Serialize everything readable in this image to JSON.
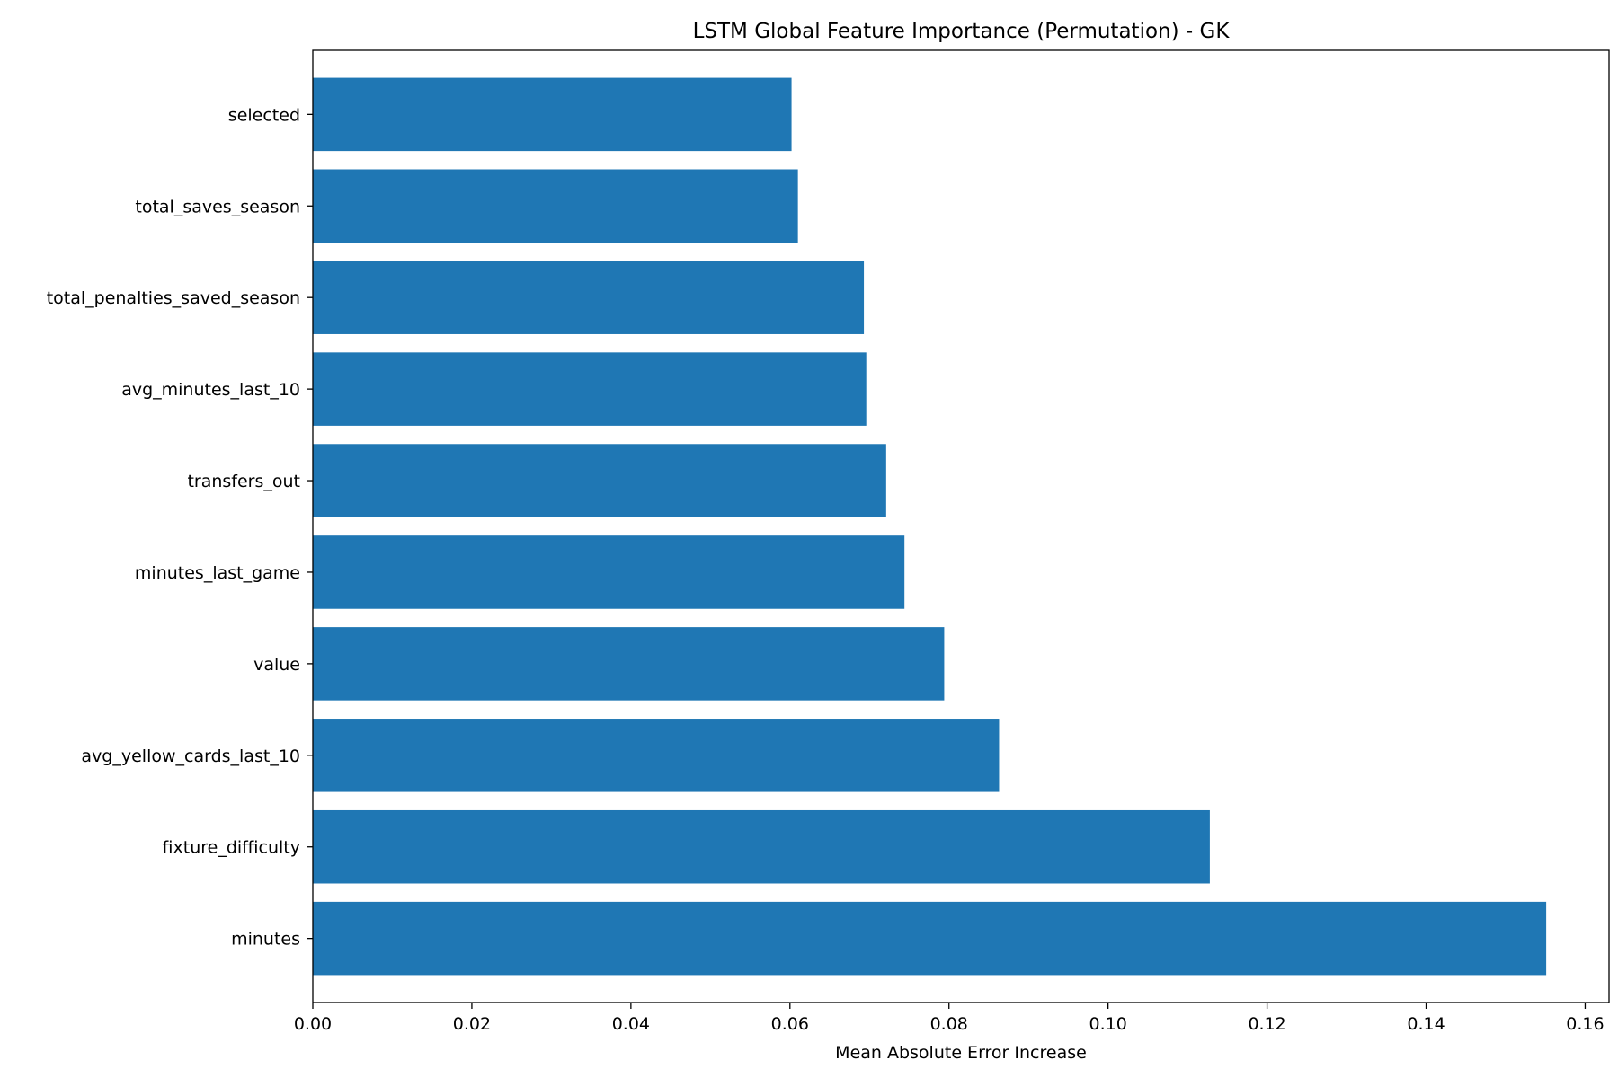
{
  "chart_data": {
    "type": "bar",
    "orientation": "horizontal",
    "title": "LSTM Global Feature Importance (Permutation) - GK",
    "xlabel": "Mean Absolute Error Increase",
    "ylabel": "",
    "categories": [
      "selected",
      "total_saves_season",
      "total_penalties_saved_season",
      "avg_minutes_last_10",
      "transfers_out",
      "minutes_last_game",
      "value",
      "avg_yellow_cards_last_10",
      "fixture_difficulty",
      "minutes"
    ],
    "values": [
      0.0602,
      0.061,
      0.0693,
      0.0696,
      0.0721,
      0.0744,
      0.0794,
      0.0863,
      0.1128,
      0.1551
    ],
    "xlim": [
      0,
      0.163
    ],
    "xticks": [
      0.0,
      0.02,
      0.04,
      0.06,
      0.08,
      0.1,
      0.12,
      0.14,
      0.16
    ],
    "xtick_labels": [
      "0.00",
      "0.02",
      "0.04",
      "0.06",
      "0.08",
      "0.10",
      "0.12",
      "0.14",
      "0.16"
    ],
    "bar_color": "#1f77b4",
    "grid": false,
    "legend": false
  }
}
